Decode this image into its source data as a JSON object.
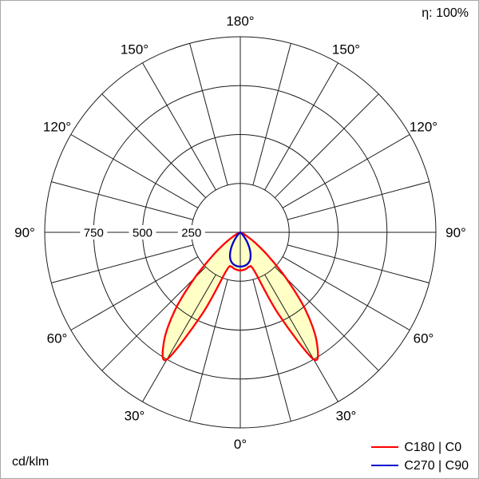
{
  "meta": {
    "efficiency": "η: 100%",
    "unit": "cd/klm"
  },
  "legend": {
    "items": [
      {
        "label": "C180 | C0",
        "color": "#ff0000"
      },
      {
        "label": "C270 | C90",
        "color": "#0000cc"
      }
    ]
  },
  "chart_data": {
    "type": "polar",
    "subtype": "photometric-intensity-distribution",
    "unit": "cd/klm",
    "efficiency_percent": 100,
    "angle_axis": {
      "zero_at": "bottom",
      "labels_deg": [
        0,
        30,
        60,
        90,
        120,
        150,
        180
      ],
      "spoke_step_deg": 15,
      "symmetric_labels": true
    },
    "r_axis": {
      "ticks": [
        250,
        500,
        750,
        1000
      ],
      "labeled_ticks": [
        750,
        500,
        250
      ],
      "max": 1000
    },
    "gamma_deg": [
      0,
      5,
      10,
      15,
      20,
      25,
      30,
      35,
      40,
      45,
      50,
      55,
      60,
      65,
      70,
      75,
      80,
      85,
      90
    ],
    "series": [
      {
        "name": "C180 | C0",
        "color": "#ff0000",
        "fill": "#ffffc6",
        "mirrored": true,
        "values": [
          195,
          193,
          188,
          182,
          210,
          460,
          750,
          680,
          520,
          330,
          180,
          90,
          40,
          18,
          8,
          3,
          1,
          0,
          0
        ]
      },
      {
        "name": "C270 | C90",
        "color": "#0000cc",
        "fill": null,
        "mirrored": true,
        "values": [
          175,
          174,
          170,
          162,
          148,
          125,
          95,
          62,
          35,
          16,
          8,
          3,
          1,
          0,
          0,
          0,
          0,
          0,
          0
        ]
      }
    ]
  }
}
